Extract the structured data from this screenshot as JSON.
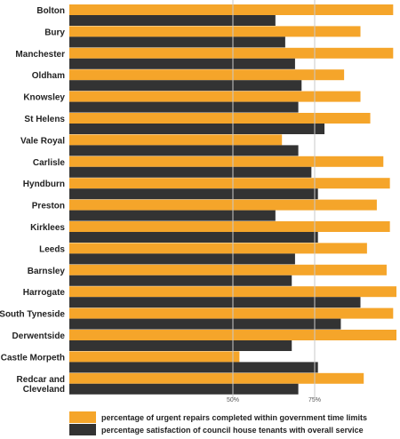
{
  "chart_data": {
    "type": "bar",
    "orientation": "horizontal",
    "categories": [
      [
        "Bolton"
      ],
      [
        "Bury"
      ],
      [
        "Manchester"
      ],
      [
        "Oldham"
      ],
      [
        "Knowsley"
      ],
      [
        "St Helens"
      ],
      [
        "Vale Royal"
      ],
      [
        "Carlisle"
      ],
      [
        "Hyndburn"
      ],
      [
        "Preston"
      ],
      [
        "Kirklees"
      ],
      [
        "Leeds"
      ],
      [
        "Barnsley"
      ],
      [
        "Harrogate"
      ],
      [
        "South Tyneside"
      ],
      [
        "Derwentside"
      ],
      [
        "Castle Morpeth"
      ],
      [
        "Redcar and",
        "Cleveland"
      ]
    ],
    "series": [
      {
        "name": "percentage of urgent repairs completed within government time limits",
        "color": "#f5a52a",
        "values": [
          99,
          89,
          99,
          84,
          89,
          92,
          65,
          96,
          98,
          94,
          98,
          91,
          97,
          100,
          99,
          100,
          52,
          90
        ]
      },
      {
        "name": "percentage satisfaction of council house tenants with overall service",
        "color": "#333333",
        "values": [
          63,
          66,
          69,
          71,
          70,
          78,
          70,
          74,
          76,
          63,
          76,
          69,
          68,
          89,
          83,
          68,
          76,
          70
        ]
      }
    ],
    "x_ticks": [
      {
        "value": 50,
        "label": "50%"
      },
      {
        "value": 75,
        "label": "75%"
      }
    ],
    "xlim": [
      0,
      100
    ],
    "grid": "vertical lines at 50% and 75%",
    "legend_position": "bottom"
  }
}
